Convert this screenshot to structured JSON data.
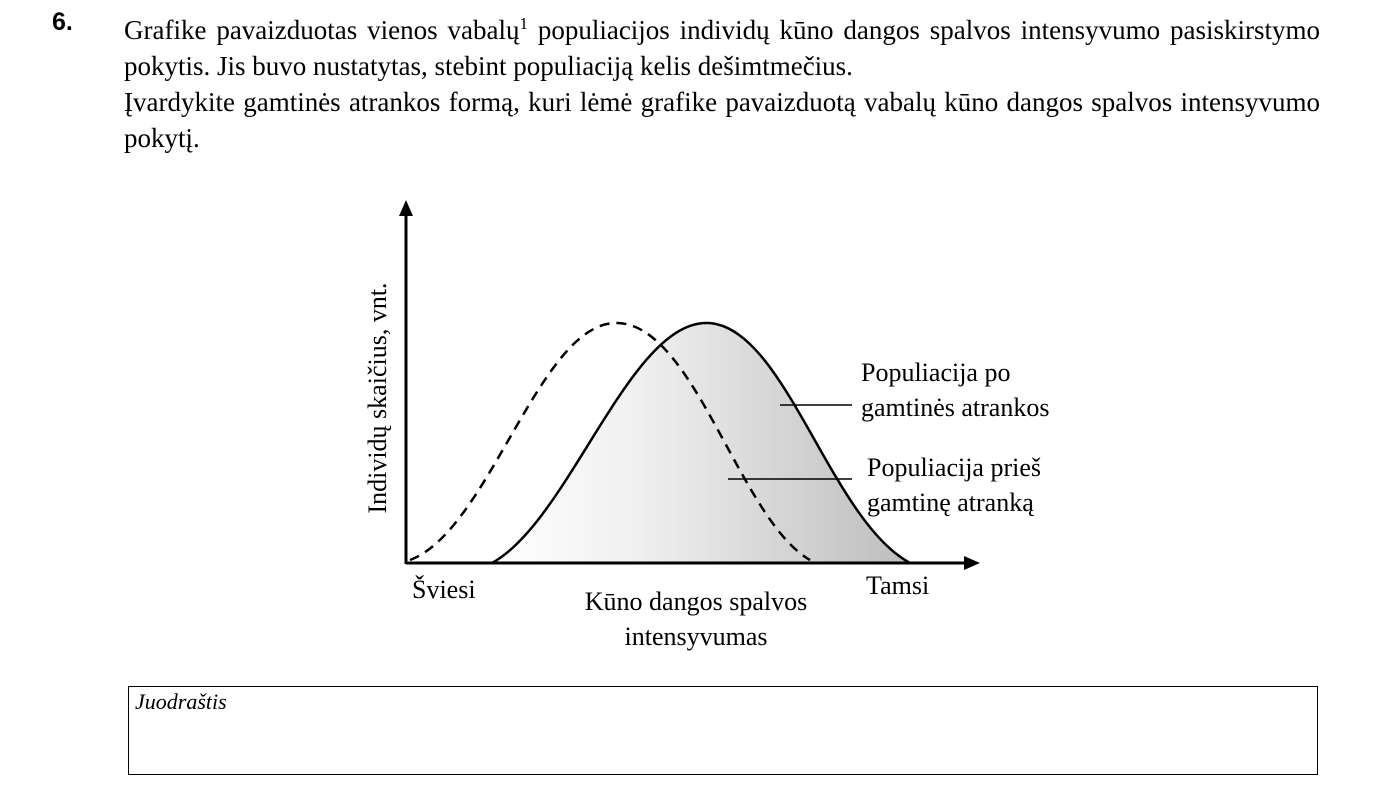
{
  "question": {
    "number": "6.",
    "line1_before_sup": "Grafike pavaizduotas vienos vabalų",
    "footnote_mark": "1",
    "line1_after_sup": " populiacijos individų kūno dangos spalvos intensyvumo pasiskirstymo pokytis. Jis buvo nustatytas, stebint populiaciją kelis dešimtmečius.",
    "line2": "Įvardykite gamtinės atrankos formą, kuri lėmė grafike pavaizduotą vabalų kūno dangos spalvos intensyvumo pokytį."
  },
  "figure": {
    "y_axis_label": "Individų skaičius, vnt.",
    "x_axis_label_line1": "Kūno dangos spalvos",
    "x_axis_label_line2": "intensyvumas",
    "x_left_label": "Šviesi",
    "x_right_label": "Tamsi",
    "after_label_line1": "Populiacija po",
    "after_label_line2": "gamtinės atrankos",
    "before_label_line1": "Populiacija prieš",
    "before_label_line2": "gamtinę atranką"
  },
  "draft": {
    "label": "Juodraštis"
  }
}
